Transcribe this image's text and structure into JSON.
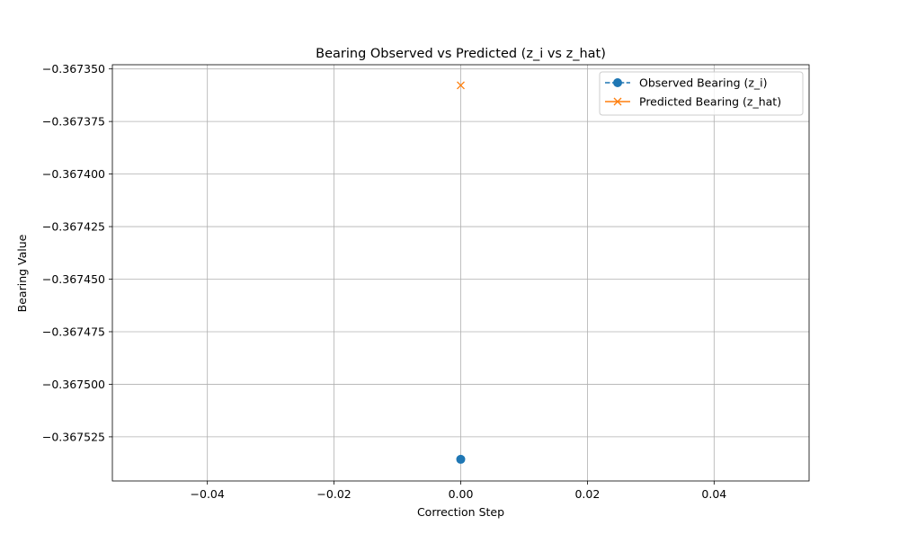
{
  "chart_data": {
    "type": "scatter",
    "title": "Bearing Observed vs Predicted (z_i vs z_hat)",
    "xlabel": "Correction Step",
    "ylabel": "Bearing Value",
    "xlim": [
      -0.055,
      0.055
    ],
    "ylim": [
      -0.367546,
      -0.367348
    ],
    "xticks": [
      -0.04,
      -0.02,
      0.0,
      0.02,
      0.04
    ],
    "xtick_labels": [
      "−0.04",
      "−0.02",
      "0.00",
      "0.02",
      "0.04"
    ],
    "yticks": [
      -0.36735,
      -0.367375,
      -0.3674,
      -0.367425,
      -0.36745,
      -0.367475,
      -0.3675,
      -0.367525
    ],
    "ytick_labels": [
      "−0.367350",
      "−0.367375",
      "−0.367400",
      "−0.367425",
      "−0.367450",
      "−0.367475",
      "−0.367500",
      "−0.367525"
    ],
    "grid": true,
    "legend_position": "top-right",
    "series": [
      {
        "name": "Observed Bearing (z_i)",
        "marker": "circle",
        "line_style": "dashed",
        "color": "#1f77b4",
        "x": [
          0
        ],
        "y": [
          -0.3675357
        ]
      },
      {
        "name": "Predicted Bearing (z_hat)",
        "marker": "x",
        "line_style": "solid",
        "color": "#ff7f0e",
        "x": [
          0
        ],
        "y": [
          -0.3673578
        ]
      }
    ]
  }
}
